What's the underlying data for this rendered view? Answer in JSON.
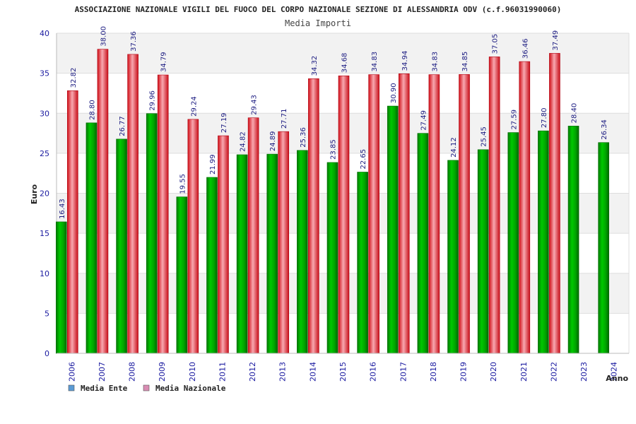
{
  "chart_data": {
    "type": "bar",
    "title": "ASSOCIAZIONE NAZIONALE VIGILI DEL FUOCO DEL CORPO NAZIONALE SEZIONE DI ALESSANDRIA ODV (c.f.96031990060)",
    "subtitle": "Media Importi",
    "xlabel": "Anno",
    "ylabel": "Euro",
    "ylim": [
      0,
      40
    ],
    "yticks": [
      "0",
      "5",
      "10",
      "15",
      "20",
      "25",
      "30",
      "35",
      "40"
    ],
    "grid": true,
    "legend_position": "bottom-left",
    "categories": [
      "2006",
      "2007",
      "2008",
      "2009",
      "2010",
      "2011",
      "2012",
      "2013",
      "2014",
      "2015",
      "2016",
      "2017",
      "2018",
      "2019",
      "2020",
      "2021",
      "2022",
      "2023",
      "2024"
    ],
    "series": [
      {
        "name": "Media Ente",
        "color": "#00a000",
        "legend_color": "#5b9bd5",
        "values": [
          16.43,
          28.8,
          26.77,
          29.96,
          19.55,
          21.99,
          24.82,
          24.89,
          25.36,
          23.85,
          22.65,
          30.9,
          27.49,
          24.12,
          25.45,
          27.59,
          27.8,
          28.4,
          26.34
        ],
        "labels": [
          "16.43",
          "28.80",
          "26.77",
          "29.96",
          "19.55",
          "21.99",
          "24.82",
          "24.89",
          "25.36",
          "23.85",
          "22.65",
          "30.90",
          "27.49",
          "24.12",
          "25.45",
          "27.59",
          "27.80",
          "28.40",
          "26.34"
        ]
      },
      {
        "name": "Media Nazionale",
        "color": "#e8202a",
        "legend_color": "#d98cb3",
        "values": [
          32.82,
          38.0,
          37.36,
          34.79,
          29.24,
          27.19,
          29.43,
          27.71,
          34.32,
          34.68,
          34.83,
          34.94,
          34.83,
          34.85,
          37.05,
          36.46,
          37.49,
          null,
          null
        ],
        "labels": [
          "32.82",
          "38.00",
          "37.36",
          "34.79",
          "29.24",
          "27.19",
          "29.43",
          "27.71",
          "34.32",
          "34.68",
          "34.83",
          "34.94",
          "34.83",
          "34.85",
          "37.05",
          "36.46",
          "37.49",
          "",
          ""
        ]
      }
    ]
  }
}
